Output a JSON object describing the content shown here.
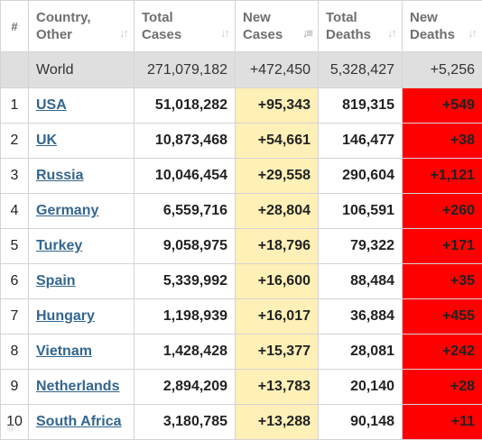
{
  "header": {
    "rank": "#",
    "country": [
      "Country,",
      "Other"
    ],
    "total_cases": [
      "Total",
      "Cases"
    ],
    "new_cases": [
      "New",
      "Cases"
    ],
    "total_deaths": [
      "Total",
      "Deaths"
    ],
    "new_deaths": [
      "New",
      "Deaths"
    ],
    "sorted_column": "new_cases"
  },
  "world": {
    "label": "World",
    "total_cases": "271,079,182",
    "new_cases": "+472,450",
    "total_deaths": "5,328,427",
    "new_deaths": "+5,256"
  },
  "rows": [
    {
      "rank": "1",
      "country": "USA",
      "total_cases": "51,018,282",
      "new_cases": "+95,343",
      "total_deaths": "819,315",
      "new_deaths": "+549"
    },
    {
      "rank": "2",
      "country": "UK",
      "total_cases": "10,873,468",
      "new_cases": "+54,661",
      "total_deaths": "146,477",
      "new_deaths": "+38"
    },
    {
      "rank": "3",
      "country": "Russia",
      "total_cases": "10,046,454",
      "new_cases": "+29,558",
      "total_deaths": "290,604",
      "new_deaths": "+1,121"
    },
    {
      "rank": "4",
      "country": "Germany",
      "total_cases": "6,559,716",
      "new_cases": "+28,804",
      "total_deaths": "106,591",
      "new_deaths": "+260"
    },
    {
      "rank": "5",
      "country": "Turkey",
      "total_cases": "9,058,975",
      "new_cases": "+18,796",
      "total_deaths": "79,322",
      "new_deaths": "+171"
    },
    {
      "rank": "6",
      "country": "Spain",
      "total_cases": "5,339,992",
      "new_cases": "+16,600",
      "total_deaths": "88,484",
      "new_deaths": "+35"
    },
    {
      "rank": "7",
      "country": "Hungary",
      "total_cases": "1,198,939",
      "new_cases": "+16,017",
      "total_deaths": "36,884",
      "new_deaths": "+455"
    },
    {
      "rank": "8",
      "country": "Vietnam",
      "total_cases": "1,428,428",
      "new_cases": "+15,377",
      "total_deaths": "28,081",
      "new_deaths": "+242"
    },
    {
      "rank": "9",
      "country": "Netherlands",
      "total_cases": "2,894,209",
      "new_cases": "+13,783",
      "total_deaths": "20,140",
      "new_deaths": "+28"
    },
    {
      "rank": "10",
      "country": "South Africa",
      "total_cases": "3,180,785",
      "new_cases": "+13,288",
      "total_deaths": "90,148",
      "new_deaths": "+11"
    }
  ],
  "colors": {
    "new_cases_bg": "#fff0b7",
    "new_deaths_bg": "#ff0000",
    "world_row_bg": "#dfdfdf",
    "country_link": "#33668f"
  },
  "icons": {
    "sort_inactive": "sort-arrows-icon",
    "sort_active": "sort-descending-icon"
  }
}
